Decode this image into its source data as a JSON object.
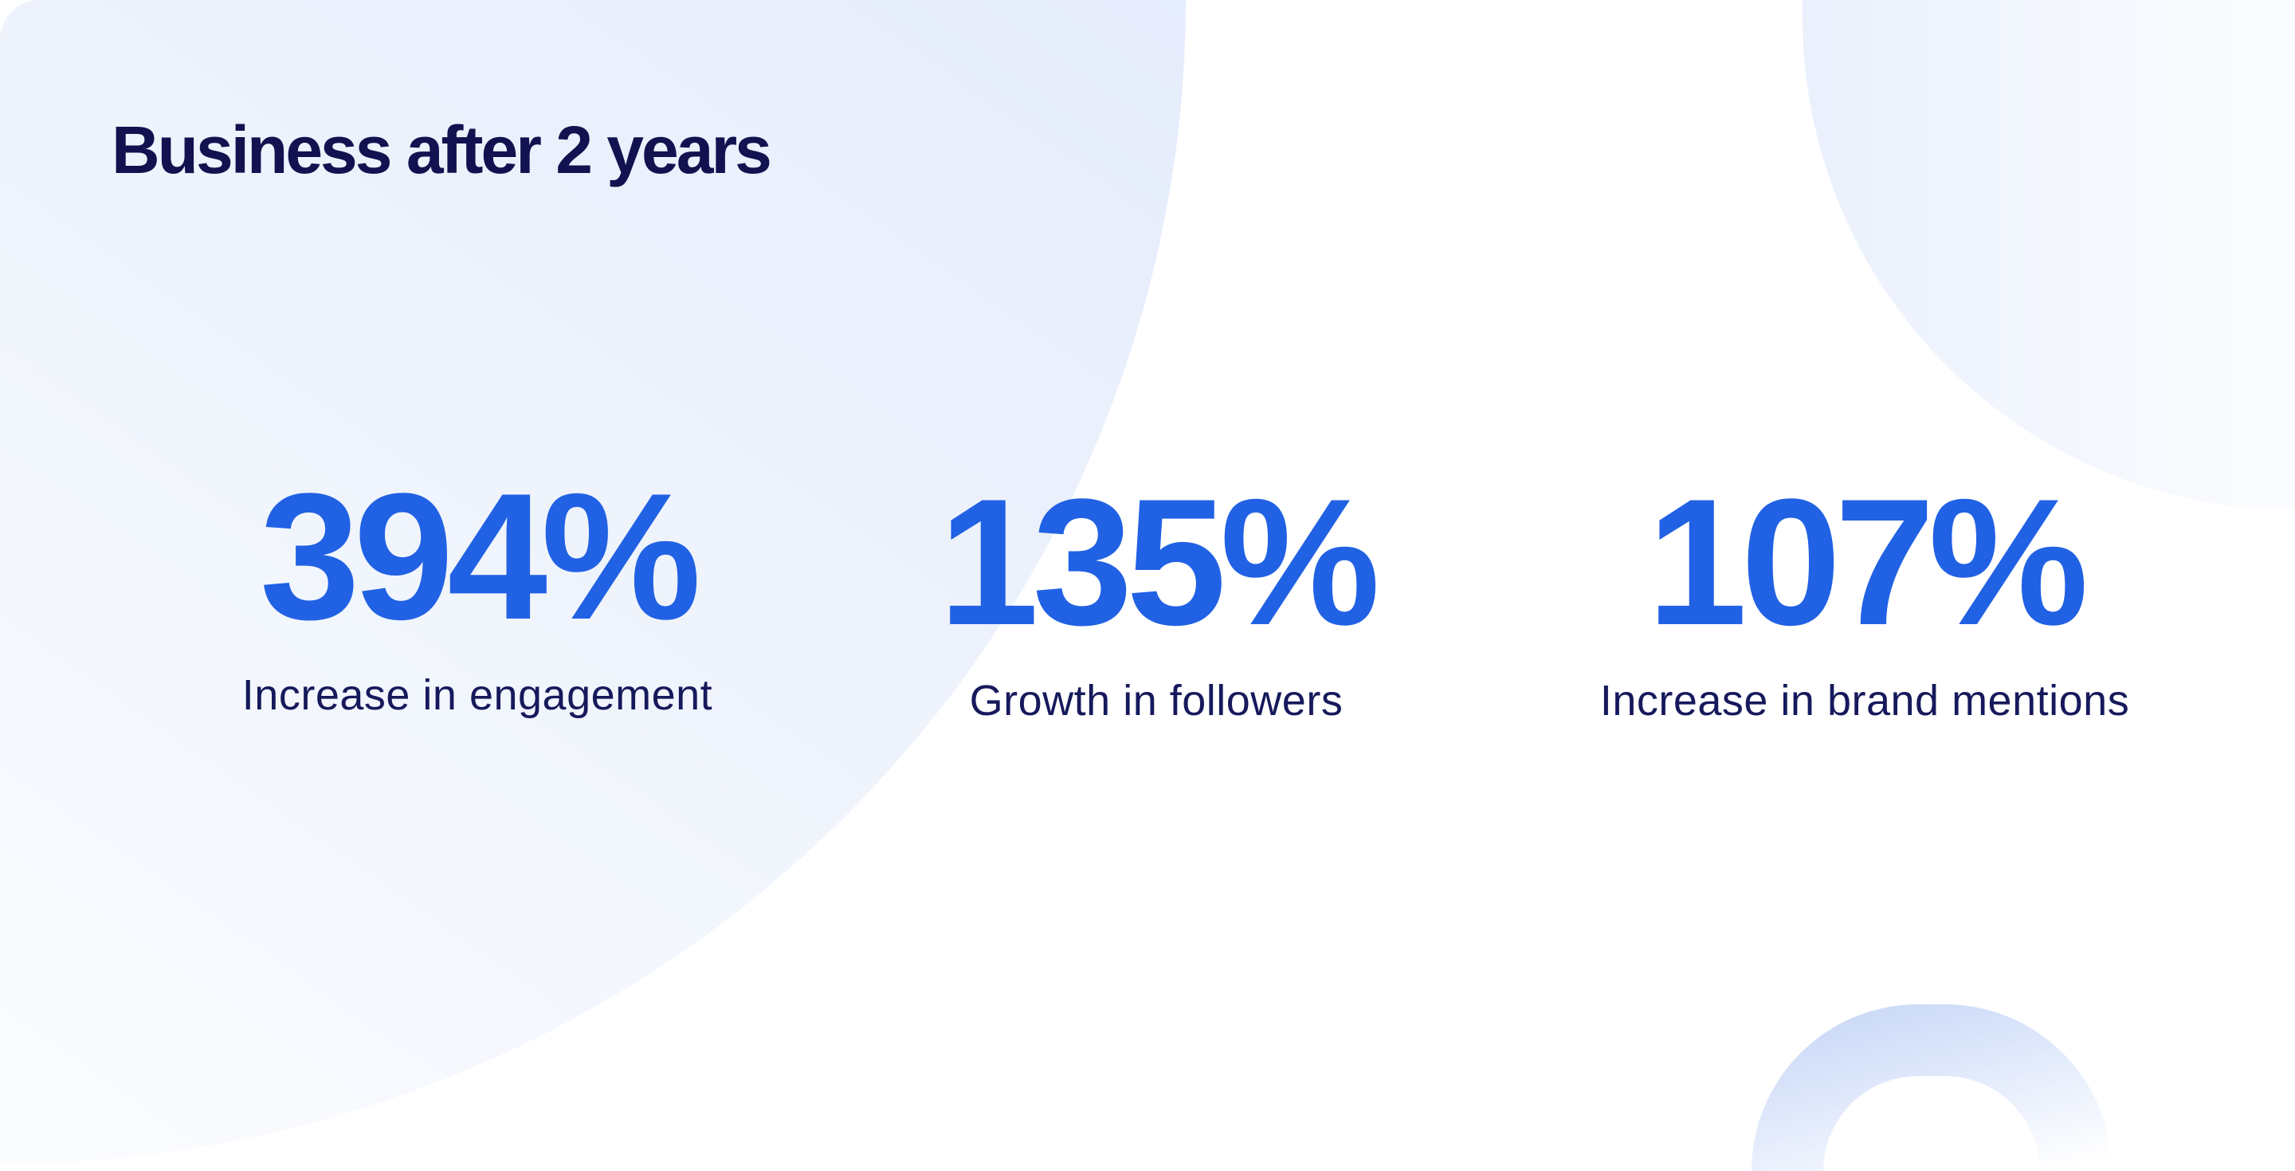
{
  "title": "Business after 2 years",
  "stats": [
    {
      "value": "394%",
      "label": "Increase in engagement"
    },
    {
      "value": "135%",
      "label": "Growth in followers"
    },
    {
      "value": "107%",
      "label": "Increase in brand mentions"
    }
  ],
  "colors": {
    "accent": "#2161e4",
    "heading": "#11124f",
    "background_shape": "#e5ecfb"
  }
}
